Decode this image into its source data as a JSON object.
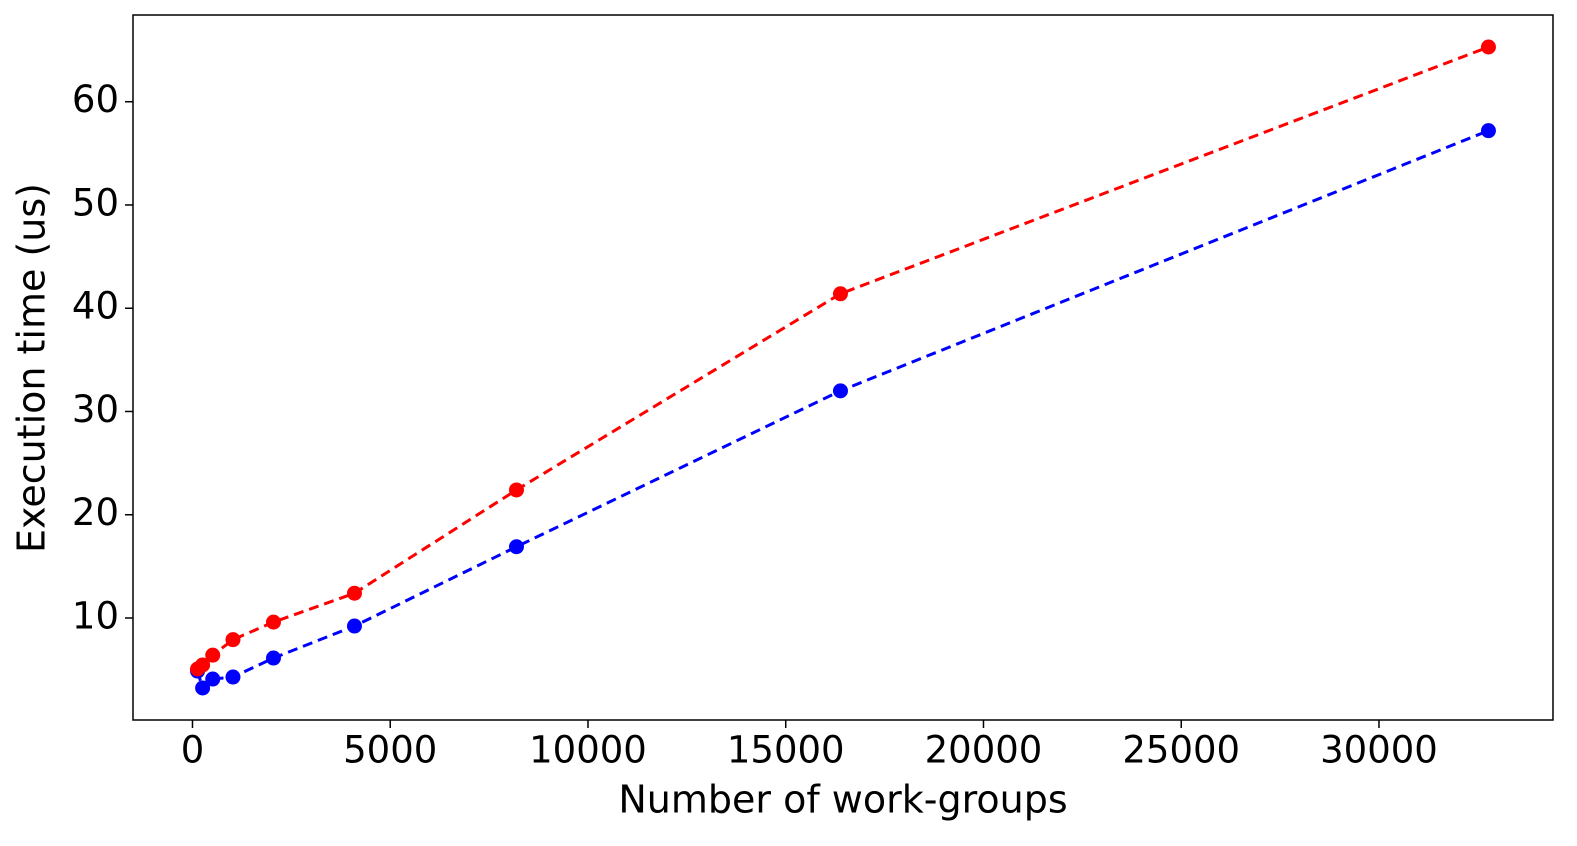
{
  "chart_data": {
    "type": "line",
    "x_label": "Number of work-groups",
    "y_label": "Execution time (us)",
    "x": [
      128,
      256,
      512,
      1024,
      2048,
      4096,
      8192,
      16384,
      32768
    ],
    "series": [
      {
        "color": "#0000ff",
        "values": [
          4.86,
          3.22,
          4.09,
          4.28,
          6.12,
          9.22,
          16.9,
          32.0,
          57.2
        ]
      },
      {
        "color": "#ff0000",
        "values": [
          5.06,
          5.45,
          6.4,
          7.9,
          9.6,
          12.4,
          22.4,
          41.4,
          65.3
        ]
      }
    ],
    "xlim": [
      -1504,
      34400
    ],
    "ylim": [
      0.12,
      68.4
    ],
    "xticks": [
      0,
      5000,
      10000,
      15000,
      20000,
      25000,
      30000
    ],
    "yticks": [
      10,
      20,
      30,
      40,
      50,
      60
    ],
    "grid": false
  }
}
